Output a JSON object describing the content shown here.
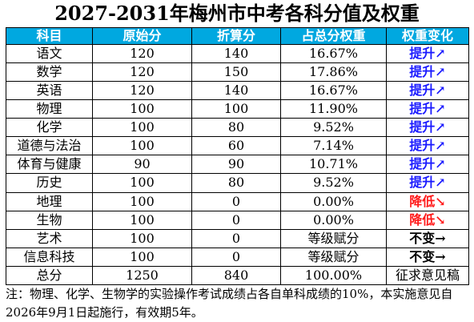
{
  "title": "2027-2031年梅州市中考各科分值及权重",
  "colors": {
    "header_bg": "#00a8e0",
    "header_text": "#ffffff",
    "up": "#1a1aff",
    "down": "#ff1a1a",
    "same": "#000000"
  },
  "columns": [
    "科目",
    "原始分",
    "折算分",
    "占总分权重",
    "权重变化"
  ],
  "rows": [
    {
      "subject": "语文",
      "raw": "120",
      "converted": "140",
      "weight": "16.67%",
      "change": "提升↗",
      "change_type": "up"
    },
    {
      "subject": "数学",
      "raw": "120",
      "converted": "150",
      "weight": "17.86%",
      "change": "提升↗",
      "change_type": "up"
    },
    {
      "subject": "英语",
      "raw": "120",
      "converted": "140",
      "weight": "16.67%",
      "change": "提升↗",
      "change_type": "up"
    },
    {
      "subject": "物理",
      "raw": "100",
      "converted": "100",
      "weight": "11.90%",
      "change": "提升↗",
      "change_type": "up"
    },
    {
      "subject": "化学",
      "raw": "100",
      "converted": "80",
      "weight": "9.52%",
      "change": "提升↗",
      "change_type": "up"
    },
    {
      "subject": "道德与法治",
      "raw": "100",
      "converted": "60",
      "weight": "7.14%",
      "change": "提升↗",
      "change_type": "up"
    },
    {
      "subject": "体育与健康",
      "raw": "90",
      "converted": "90",
      "weight": "10.71%",
      "change": "提升↗",
      "change_type": "up"
    },
    {
      "subject": "历史",
      "raw": "100",
      "converted": "80",
      "weight": "9.52%",
      "change": "提升↗",
      "change_type": "up"
    },
    {
      "subject": "地理",
      "raw": "100",
      "converted": "0",
      "weight": "0.00%",
      "change": "降低↘",
      "change_type": "down"
    },
    {
      "subject": "生物",
      "raw": "100",
      "converted": "0",
      "weight": "0.00%",
      "change": "降低↘",
      "change_type": "down"
    },
    {
      "subject": "艺术",
      "raw": "100",
      "converted": "0",
      "weight": "等级赋分",
      "change": "不变→",
      "change_type": "same"
    },
    {
      "subject": "信息科技",
      "raw": "100",
      "converted": "0",
      "weight": "等级赋分",
      "change": "不变→",
      "change_type": "same"
    },
    {
      "subject": "总分",
      "raw": "1250",
      "converted": "840",
      "weight": "100.00%",
      "change": "征求意见稿",
      "change_type": "plain"
    }
  ],
  "note": "注：物理、化学、生物学的实验操作考试成绩占各自单科成绩的10%，本实施意见自2026年9月1日起施行，有效期5年。"
}
